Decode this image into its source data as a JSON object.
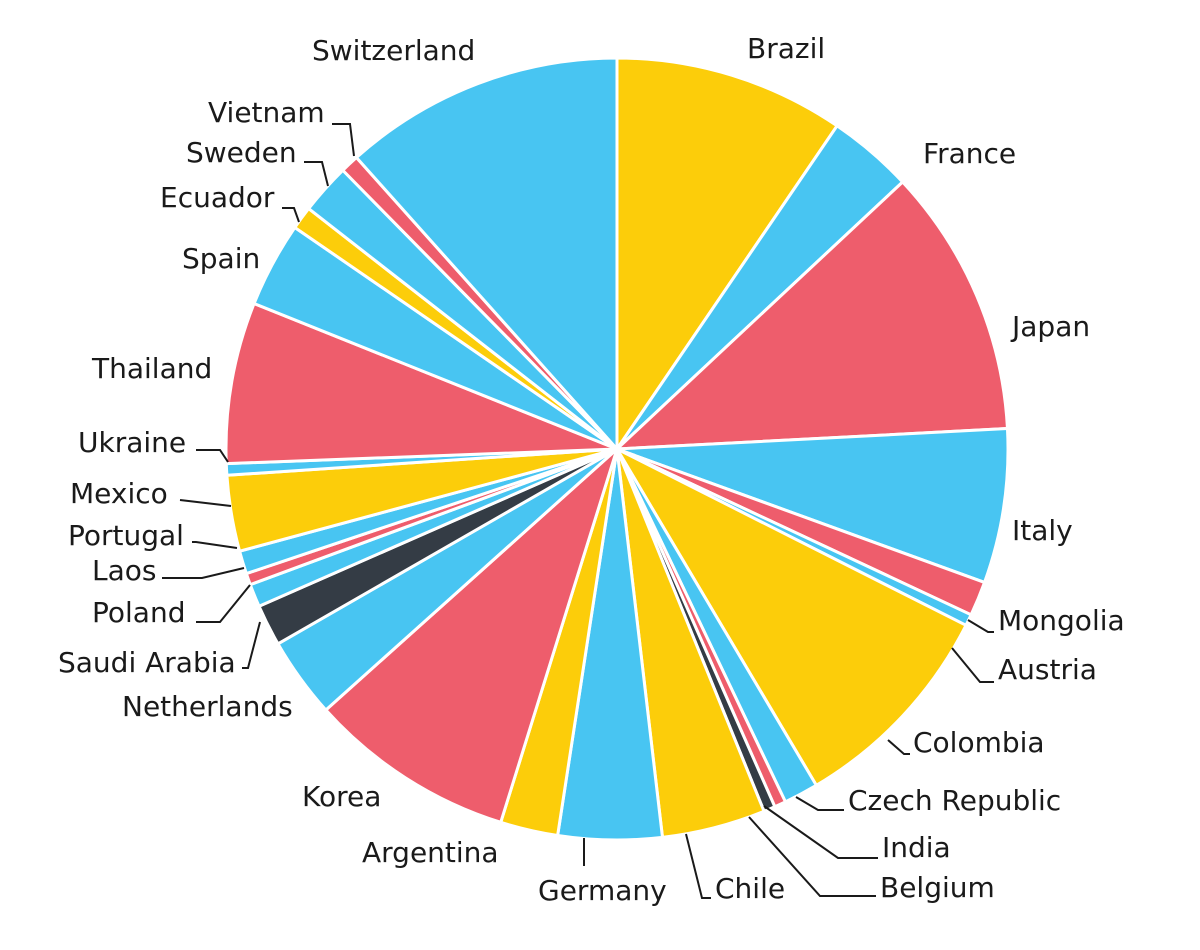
{
  "colors": {
    "blue": "#48c5f2",
    "yellow": "#fccd0a",
    "red": "#ee5d6c",
    "dark": "#343c45"
  },
  "chart_data": {
    "type": "pie",
    "title": "",
    "labels": [
      "Brazil",
      "France",
      "Japan",
      "Italy",
      "Mongolia",
      "Austria",
      "Colombia",
      "Czech Republic",
      "India",
      "Belgium",
      "Chile",
      "Germany",
      "Argentina",
      "Korea",
      "Netherlands",
      "Saudi Arabia",
      "Poland",
      "Laos",
      "Portugal",
      "Mexico",
      "Ukraine",
      "Thailand",
      "Spain",
      "Ecuador",
      "Sweden",
      "Vietnam",
      "Switzerland"
    ],
    "values": [
      10.0,
      3.7,
      11.7,
      6.7,
      1.5,
      0.5,
      9.5,
      1.5,
      0.5,
      0.5,
      4.5,
      4.5,
      2.5,
      9.0,
      3.5,
      1.8,
      1.0,
      0.5,
      1.0,
      3.3,
      0.5,
      7.0,
      3.7,
      1.0,
      2.2,
      0.8,
      12.2
    ],
    "slice_colors": [
      "yellow",
      "blue",
      "red",
      "blue",
      "red",
      "blue",
      "yellow",
      "blue",
      "red",
      "dark",
      "yellow",
      "blue",
      "yellow",
      "red",
      "blue",
      "dark",
      "blue",
      "red",
      "blue",
      "yellow",
      "blue",
      "red",
      "blue",
      "yellow",
      "blue",
      "red",
      "blue"
    ],
    "start": "12 o'clock",
    "direction": "clockwise",
    "legend": "none"
  }
}
